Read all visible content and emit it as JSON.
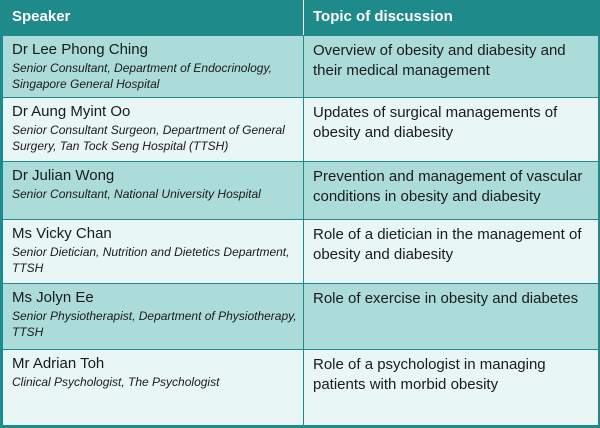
{
  "table": {
    "headers": [
      "Speaker",
      "Topic of discussion"
    ],
    "rows": [
      {
        "name": "Dr Lee Phong Ching",
        "role": "Senior Consultant, Department of Endocrinology, Singapore General Hospital",
        "topic": "Overview of obesity and diabesity and their medical management"
      },
      {
        "name": "Dr Aung Myint Oo",
        "role": "Senior Consultant Surgeon, Department of General Surgery, Tan Tock Seng Hospital (TTSH)",
        "topic": "Updates of surgical managements of obesity and diabesity"
      },
      {
        "name": "Dr Julian Wong",
        "role": "Senior Consultant, National University Hospital",
        "topic": "Prevention and management of vascular conditions in obesity and diabesity"
      },
      {
        "name": "Ms Vicky Chan",
        "role": "Senior Dietician, Nutrition and Dietetics Department, TTSH",
        "topic": "Role of a dietician in the management of obesity and diabesity"
      },
      {
        "name": "Ms Jolyn Ee",
        "role": "Senior Physiotherapist, Department of Physiotherapy, TTSH",
        "topic": "Role of exercise in obesity and diabetes"
      },
      {
        "name": "Mr Adrian Toh",
        "role": "Clinical Psychologist, The Psychologist",
        "topic": "Role of a psychologist in managing patients with morbid obesity"
      }
    ]
  },
  "colors": {
    "header_bg": "#1e8a8a",
    "row_dark": "#abdcda",
    "row_light": "#e8f6f6"
  }
}
